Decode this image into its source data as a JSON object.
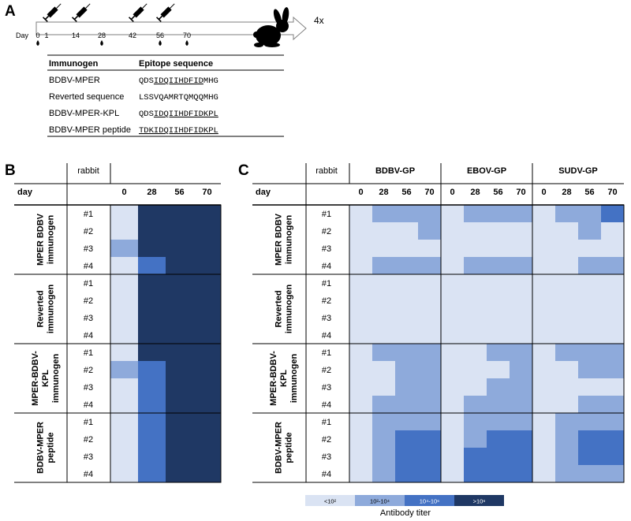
{
  "panels": {
    "a": "A",
    "b": "B",
    "c": "C"
  },
  "timeline": {
    "day_label": "Day",
    "days": [
      "0",
      "1",
      "14",
      "28",
      "42",
      "56",
      "70"
    ],
    "immunization_days": [
      "1",
      "14",
      "42",
      "56"
    ],
    "bleed_days": [
      "0",
      "28",
      "56",
      "70"
    ],
    "multiplier": "4x"
  },
  "immunogen_table": {
    "headers": [
      "Immunogen",
      "Epitope sequence"
    ],
    "rows": [
      {
        "name": "BDBV-MPER",
        "prefix": "QDS",
        "underlined": "IDQIIHDFID",
        "suffix": "MHG"
      },
      {
        "name": "Reverted sequence",
        "prefix": "LSSVQAMRTQMQQMHG",
        "underlined": "",
        "suffix": ""
      },
      {
        "name": "BDBV-MPER-KPL",
        "prefix": "QDS",
        "underlined": "IDQIIHDFIDKPL",
        "suffix": ""
      },
      {
        "name": "BDBV-MPER peptide",
        "prefix": "",
        "underlined": "TDKIDQIIHDFIDKPL",
        "suffix": ""
      }
    ]
  },
  "heatmap_b": {
    "header_rabbit": "rabbit",
    "header_day": "day",
    "days": [
      "0",
      "28",
      "56",
      "70"
    ]
  },
  "heatmap_c": {
    "header_rabbit": "rabbit",
    "header_day": "day",
    "antigens": [
      "BDBV-GP",
      "EBOV-GP",
      "SUDV-GP"
    ],
    "days": [
      "0",
      "28",
      "56",
      "70"
    ]
  },
  "groups": [
    {
      "label_lines": [
        "MPER BDBV",
        "immunogen"
      ]
    },
    {
      "label_lines": [
        "Reverted",
        "immunogen"
      ]
    },
    {
      "label_lines": [
        "MPER-BDBV-",
        "KPL",
        "immunogen"
      ]
    },
    {
      "label_lines": [
        "BDBV-MPER",
        "peptide"
      ]
    }
  ],
  "rabbits": [
    "#1",
    "#2",
    "#3",
    "#4"
  ],
  "legend": {
    "title": "Antibody titer",
    "levels": [
      {
        "label": "<10²",
        "color": "#dae3f3"
      },
      {
        "label": "10²-10⁴",
        "color": "#8eaadb"
      },
      {
        "label": "10⁴-10⁶",
        "color": "#4472c4"
      },
      {
        "label": ">10⁶",
        "color": "#1f3864"
      }
    ]
  },
  "chart_data": [
    {
      "type": "heatmap",
      "title": "B",
      "xlabel": "day",
      "ylabel": "rabbit",
      "columns": [
        "0",
        "28",
        "56",
        "70"
      ],
      "rows": [
        "#1",
        "#2",
        "#3",
        "#4",
        "#1",
        "#2",
        "#3",
        "#4",
        "#1",
        "#2",
        "#3",
        "#4",
        "#1",
        "#2",
        "#3",
        "#4"
      ],
      "values": [
        [
          0,
          3,
          3,
          3
        ],
        [
          0,
          3,
          3,
          3
        ],
        [
          1,
          3,
          3,
          3
        ],
        [
          0,
          2,
          3,
          3
        ],
        [
          0,
          3,
          3,
          3
        ],
        [
          0,
          3,
          3,
          3
        ],
        [
          0,
          3,
          3,
          3
        ],
        [
          0,
          3,
          3,
          3
        ],
        [
          0,
          3,
          3,
          3
        ],
        [
          1,
          2,
          3,
          3
        ],
        [
          0,
          2,
          3,
          3
        ],
        [
          0,
          2,
          3,
          3
        ],
        [
          0,
          2,
          3,
          3
        ],
        [
          0,
          2,
          3,
          3
        ],
        [
          0,
          2,
          3,
          3
        ],
        [
          0,
          2,
          3,
          3
        ]
      ]
    },
    {
      "type": "heatmap",
      "title": "C",
      "xlabel": "day",
      "ylabel": "rabbit",
      "column_groups": [
        "BDBV-GP",
        "EBOV-GP",
        "SUDV-GP"
      ],
      "columns": [
        "0",
        "28",
        "56",
        "70",
        "0",
        "28",
        "56",
        "70",
        "0",
        "28",
        "56",
        "70"
      ],
      "rows": [
        "#1",
        "#2",
        "#3",
        "#4",
        "#1",
        "#2",
        "#3",
        "#4",
        "#1",
        "#2",
        "#3",
        "#4",
        "#1",
        "#2",
        "#3",
        "#4"
      ],
      "values": [
        [
          0,
          1,
          1,
          1,
          0,
          1,
          1,
          1,
          0,
          1,
          1,
          2
        ],
        [
          0,
          0,
          0,
          1,
          0,
          0,
          0,
          0,
          0,
          0,
          1,
          0
        ],
        [
          0,
          0,
          0,
          0,
          0,
          0,
          0,
          0,
          0,
          0,
          0,
          0
        ],
        [
          0,
          1,
          1,
          1,
          0,
          1,
          1,
          1,
          0,
          0,
          1,
          1
        ],
        [
          0,
          0,
          0,
          0,
          0,
          0,
          0,
          0,
          0,
          0,
          0,
          0
        ],
        [
          0,
          0,
          0,
          0,
          0,
          0,
          0,
          0,
          0,
          0,
          0,
          0
        ],
        [
          0,
          0,
          0,
          0,
          0,
          0,
          0,
          0,
          0,
          0,
          0,
          0
        ],
        [
          0,
          0,
          0,
          0,
          0,
          0,
          0,
          0,
          0,
          0,
          0,
          0
        ],
        [
          0,
          1,
          1,
          1,
          0,
          0,
          1,
          1,
          0,
          1,
          1,
          1
        ],
        [
          0,
          0,
          1,
          1,
          0,
          0,
          0,
          1,
          0,
          0,
          1,
          1
        ],
        [
          0,
          0,
          1,
          1,
          0,
          0,
          1,
          1,
          0,
          0,
          0,
          0
        ],
        [
          0,
          1,
          1,
          1,
          0,
          1,
          1,
          1,
          0,
          0,
          1,
          1
        ],
        [
          0,
          1,
          1,
          1,
          0,
          1,
          1,
          1,
          0,
          1,
          1,
          1
        ],
        [
          0,
          1,
          2,
          2,
          0,
          1,
          2,
          2,
          0,
          1,
          2,
          2
        ],
        [
          0,
          1,
          2,
          2,
          0,
          2,
          2,
          2,
          0,
          1,
          2,
          2
        ],
        [
          0,
          1,
          2,
          2,
          0,
          2,
          2,
          2,
          0,
          1,
          1,
          1
        ]
      ]
    }
  ]
}
